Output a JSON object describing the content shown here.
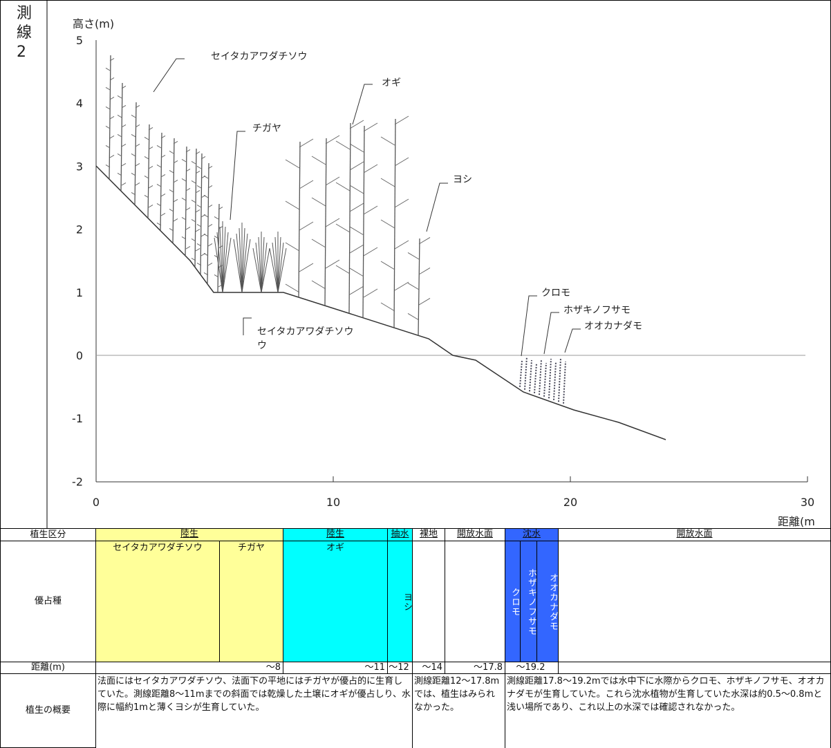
{
  "side_label": [
    "測",
    "線",
    "2"
  ],
  "axis": {
    "y_label": "高さ(m)",
    "x_label": "距離(m",
    "yticks": [
      5,
      4,
      3,
      2,
      1,
      0,
      -1,
      -2
    ],
    "xticks": [
      0,
      10,
      20,
      30
    ]
  },
  "plant_labels": [
    "セイタカアワダチソウ",
    "オギ",
    "チガヤ",
    "ヨシ",
    "セイタカアワダチソウ",
    "ウ",
    "クロモ",
    "ホザキノフサモ",
    "オオカナダモ"
  ],
  "table": {
    "row_labels": [
      "植生区分",
      "優占種",
      "距離(m)",
      "植生の概要"
    ],
    "zones": [
      "陸生",
      "陸生",
      "抽水",
      "裸地",
      "開放水面",
      "沈水",
      "開放水面"
    ],
    "species": [
      "セイタカアワダチソウ",
      "チガヤ",
      "オギ",
      "ヨシ",
      "クロモ",
      "ホザキノフサモ",
      "オオカナダモ"
    ],
    "distances": [
      "～8",
      "～11",
      "～12",
      "～14",
      "～17.8",
      "～19.2"
    ],
    "summaries": [
      "法面にはセイタカアワダチソウ、法面下の平地にはチガヤが優占的に生育していた。測線距離8～11mまでの斜面では乾燥した土壌にオギが優占しり、水際に幅約1mと薄くヨシが生育していた。",
      "測線距離12～17.8mでは、植生はみられなかった。",
      "測線距離17.8～19.2mでは水中下に水際からクロモ、ホザキノフサモ、オオカナダモが生育していた。これら沈水植物が生育していた水深は約0.5～0.8mと浅い場所であり、これ以上の水深では確認されなかった。"
    ]
  }
}
